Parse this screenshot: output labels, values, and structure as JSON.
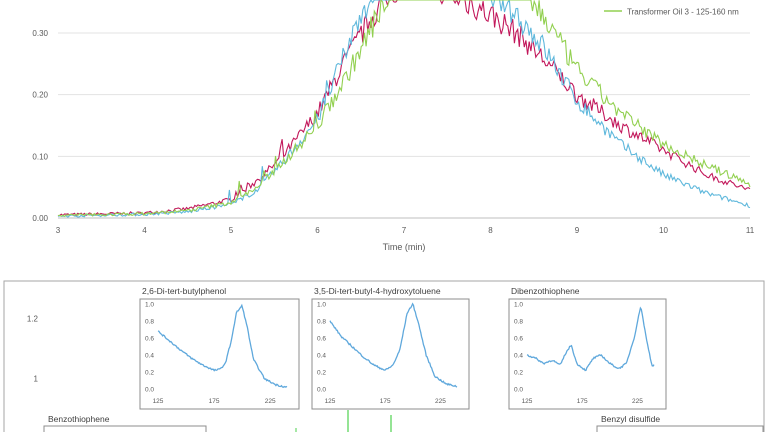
{
  "chart_data": [
    {
      "type": "line",
      "xlabel": "Time (min)",
      "ylabel": "",
      "xlim": [
        3,
        11
      ],
      "ylim": [
        0,
        0.36
      ],
      "x_ticks": [
        "3",
        "4",
        "5",
        "6",
        "7",
        "8",
        "9",
        "10",
        "11"
      ],
      "y_ticks": [
        "0.00",
        "0.10",
        "0.20",
        "0.30"
      ],
      "y_tick_values": [
        0,
        0.1,
        0.2,
        0.3
      ],
      "grid": "horizontal",
      "legend": "top-right",
      "series": [
        {
          "name": "",
          "color": "#c2185b",
          "x": [
            3,
            4,
            4.5,
            5,
            5.3,
            5.6,
            6,
            6.3,
            6.6,
            6.8,
            7,
            7.3,
            7.6,
            8,
            8.3,
            8.6,
            9,
            9.5,
            10,
            10.5,
            11
          ],
          "y": [
            0.005,
            0.008,
            0.015,
            0.03,
            0.06,
            0.1,
            0.17,
            0.25,
            0.32,
            0.36,
            0.38,
            0.38,
            0.36,
            0.33,
            0.3,
            0.26,
            0.2,
            0.15,
            0.11,
            0.07,
            0.045
          ]
        },
        {
          "name": "Transformer Oil 3 - 125-160 nm",
          "color": "#92d050",
          "x": [
            3,
            4,
            4.5,
            5,
            5.3,
            5.6,
            6,
            6.3,
            6.6,
            6.8,
            7,
            7.5,
            8,
            8.3,
            8.6,
            9,
            9.5,
            10,
            10.5,
            11
          ],
          "y": [
            0.004,
            0.007,
            0.012,
            0.025,
            0.05,
            0.09,
            0.15,
            0.22,
            0.3,
            0.36,
            0.4,
            0.42,
            0.4,
            0.38,
            0.33,
            0.24,
            0.17,
            0.12,
            0.085,
            0.055
          ]
        },
        {
          "name": "",
          "color": "#5fb8dc",
          "x": [
            3,
            4,
            4.5,
            5,
            5.3,
            5.6,
            6,
            6.3,
            6.5,
            6.7,
            7,
            7.5,
            8,
            8.3,
            8.6,
            9,
            9.5,
            10,
            10.5,
            11
          ],
          "y": [
            0.003,
            0.006,
            0.01,
            0.022,
            0.045,
            0.09,
            0.16,
            0.26,
            0.33,
            0.38,
            0.42,
            0.42,
            0.37,
            0.33,
            0.28,
            0.19,
            0.12,
            0.07,
            0.04,
            0.02
          ]
        }
      ]
    },
    {
      "type": "line",
      "title": "",
      "y_ticks": [
        "1.2",
        "1"
      ],
      "insets": [
        {
          "title": "2,6-Di-tert-butylphenol",
          "x_ticks": [
            "125",
            "175",
            "225"
          ],
          "y_ticks": [
            "1.0",
            "0.8",
            "0.6",
            "0.4",
            "0.2",
            "0.0"
          ],
          "xlim": [
            125,
            240
          ],
          "ylim": [
            0,
            1
          ],
          "x": [
            125,
            135,
            145,
            155,
            165,
            175,
            180,
            185,
            190,
            195,
            200,
            205,
            210,
            220,
            230,
            240
          ],
          "y": [
            0.68,
            0.57,
            0.46,
            0.36,
            0.28,
            0.22,
            0.23,
            0.3,
            0.55,
            0.9,
            0.98,
            0.7,
            0.35,
            0.12,
            0.05,
            0.02
          ]
        },
        {
          "title": "3,5-Di-tert-butyl-4-hydroxytoluene",
          "x_ticks": [
            "125",
            "175",
            "225"
          ],
          "y_ticks": [
            "1.0",
            "0.8",
            "0.6",
            "0.4",
            "0.2",
            "0.0"
          ],
          "xlim": [
            125,
            240
          ],
          "ylim": [
            0,
            1
          ],
          "x": [
            125,
            135,
            145,
            155,
            165,
            175,
            182,
            188,
            195,
            200,
            205,
            212,
            220,
            230,
            240
          ],
          "y": [
            0.8,
            0.62,
            0.5,
            0.38,
            0.28,
            0.22,
            0.28,
            0.45,
            0.9,
            1.0,
            0.78,
            0.4,
            0.15,
            0.06,
            0.03
          ]
        },
        {
          "title": "Dibenzothiophene",
          "x_ticks": [
            "125",
            "175",
            "225"
          ],
          "y_ticks": [
            "1.0",
            "0.8",
            "0.6",
            "0.4",
            "0.2",
            "0.0"
          ],
          "xlim": [
            125,
            240
          ],
          "ylim": [
            0,
            1
          ],
          "x": [
            125,
            133,
            140,
            148,
            155,
            160,
            165,
            170,
            178,
            185,
            192,
            200,
            208,
            215,
            222,
            228,
            233,
            238
          ],
          "y": [
            0.4,
            0.36,
            0.3,
            0.34,
            0.28,
            0.42,
            0.52,
            0.3,
            0.22,
            0.36,
            0.4,
            0.3,
            0.24,
            0.3,
            0.6,
            0.98,
            0.6,
            0.28
          ]
        }
      ],
      "labels": [
        "Benzothiophene",
        "Benzyl disulfide"
      ]
    }
  ]
}
